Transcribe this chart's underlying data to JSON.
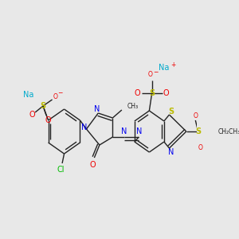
{
  "bg_color": "#e8e8e8",
  "bond_color": "#222222",
  "bond_width": 1.0,
  "colors": {
    "C": "#222222",
    "N": "#0000ee",
    "O": "#ee0000",
    "S": "#bbbb00",
    "Cl": "#00bb00",
    "Na": "#00aacc",
    "plus": "#ee0000",
    "minus": "#ee0000"
  },
  "fs": 7.0,
  "sfs": 5.5
}
